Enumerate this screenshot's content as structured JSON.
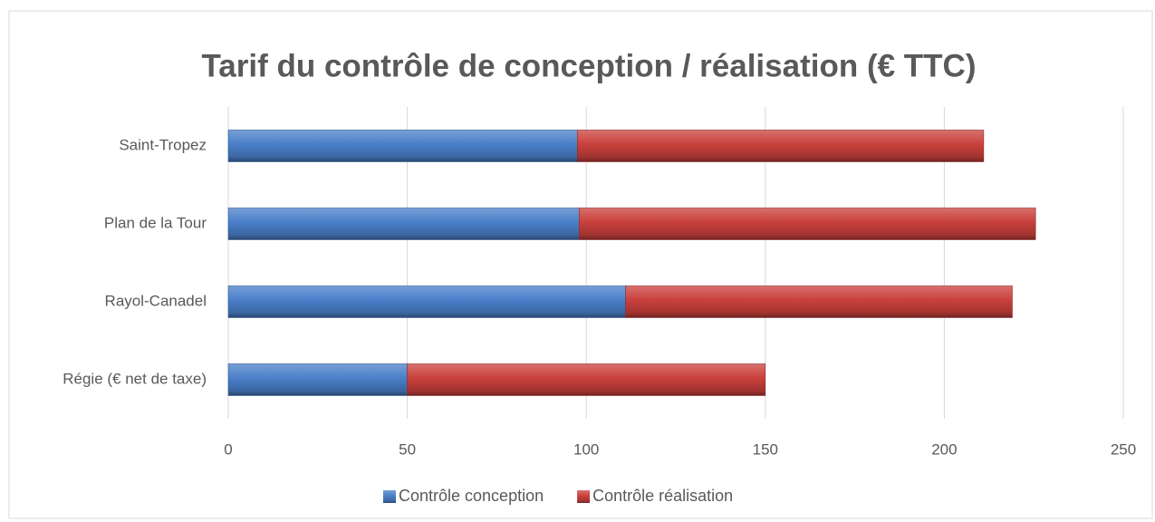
{
  "chart_data": {
    "type": "stacked_barh",
    "title": "Tarif du contrôle de conception / réalisation (€ TTC)",
    "categories": [
      "Saint-Tropez",
      "Plan de la Tour",
      "Rayol-Canadel",
      "Régie (€ net de taxe)"
    ],
    "series": [
      {
        "name": "Contrôle conception",
        "color": "#4a7fc9",
        "values": [
          97.5,
          98,
          111,
          50
        ]
      },
      {
        "name": "Contrôle réalisation",
        "color": "#c9403c",
        "values": [
          113.5,
          127.5,
          108,
          100
        ]
      }
    ],
    "xlim": [
      0,
      250
    ],
    "xticks": [
      0,
      50,
      100,
      150,
      200,
      250
    ],
    "grid": true,
    "legend": "bottom"
  }
}
